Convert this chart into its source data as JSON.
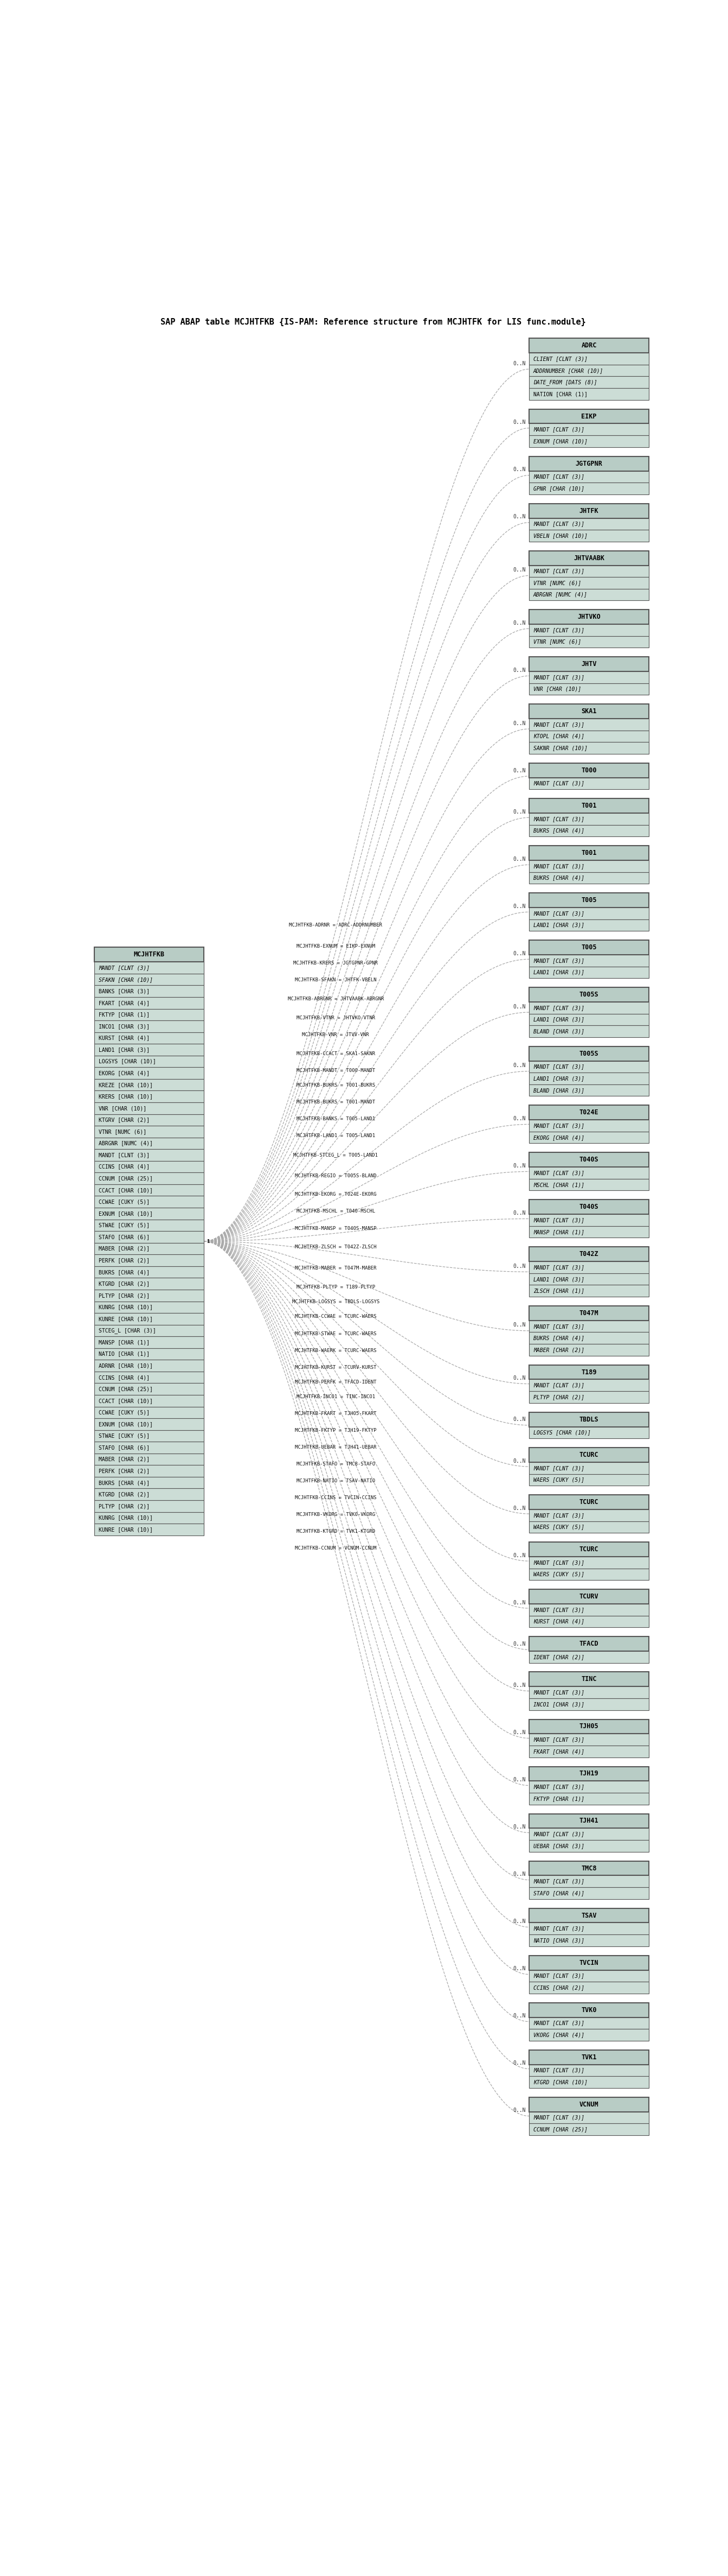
{
  "title": "SAP ABAP table MCJHTFKB {IS-PAM: Reference structure from MCJHTFK for LIS func.module}",
  "fig_w": 13.43,
  "fig_h": 47.46,
  "bg_color": "#ffffff",
  "header_bg": "#b8ccc5",
  "row_bg": "#ccddd6",
  "border_color": "#555555",
  "center_table": {
    "name": "MCJHTFKB",
    "fields": [
      "MANDT [CLNT (3)]",
      "SFAKN [CHAR (10)]",
      "BANKS [CHAR (3)]",
      "FKART [CHAR (4)]",
      "FKTYP [CHAR (1)]",
      "INCO1 [CHAR (3)]",
      "KURST [CHAR (4)]",
      "LAND1 [CHAR (3)]",
      "LOGSYS [CHAR (10)]",
      "EKORG [CHAR (4)]",
      "KREZE [CHAR (10)]",
      "KRERS [CHAR (10)]",
      "VNR [CHAR (10)]",
      "KTGRV [CHAR (2)]",
      "VTNR [NUMC (6)]",
      "ABRGNR [NUMC (4)]",
      "MANDT [CLNT (3)]",
      "CCINS [CHAR (4)]",
      "CCNUM [CHAR (25)]",
      "CCACT [CHAR (10)]",
      "CCWAE [CUKY (5)]",
      "EXNUM [CHAR (10)]",
      "STWAE [CUKY (5)]",
      "STAFO [CHAR (6)]",
      "MABER [CHAR (2)]",
      "PERFK [CHAR (2)]",
      "BUKRS [CHAR (4)]",
      "KTGRD [CHAR (2)]",
      "PLTYP [CHAR (2)]",
      "KUNRG [CHAR (10)]",
      "KUNRE [CHAR (10)]",
      "STCEG_L [CHAR (3)]",
      "MANSP [CHAR (1)]",
      "NATIO [CHAR (1)]",
      "ADRNR [CHAR (10)]",
      "CCINS [CHAR (4)]",
      "CCNUM [CHAR (25)]",
      "CCACT [CHAR (10)]",
      "CCWAE [CUKY (5)]",
      "EXNUM [CHAR (10)]",
      "STWAE [CUKY (5)]",
      "STAFO [CHAR (6)]",
      "MABER [CHAR (2)]",
      "PERFK [CHAR (2)]",
      "BUKRS [CHAR (4)]",
      "KTGRD [CHAR (2)]",
      "PLTYP [CHAR (2)]",
      "KUNRG [CHAR (10)]",
      "KUNRE [CHAR (10)]"
    ],
    "key_count": 2
  },
  "right_tables": [
    {
      "name": "ADRC",
      "fields": [
        "CLIENT [CLNT (3)]",
        "ADDRNUMBER [CHAR (10)]",
        "DATE_FROM [DATS (8)]",
        "NATION [CHAR (1)]"
      ],
      "key_count": 3,
      "relation": "MCJHTFKB-ADRNR = ADRC-ADDRNUMBER",
      "cardinality": "0..N",
      "row_bg": "#ccddd6",
      "header_bg": "#b8ccc5"
    },
    {
      "name": "EIKP",
      "fields": [
        "MANDT [CLNT (3)]",
        "EXNUM [CHAR (10)]"
      ],
      "key_count": 2,
      "relation": "MCJHTFKB-EXNUM = EIKP-EXNUM",
      "cardinality": "0..N",
      "row_bg": "#ccddd6",
      "header_bg": "#b8ccc5"
    },
    {
      "name": "JGTGPNR",
      "fields": [
        "MANDT [CLNT (3)]",
        "GPNR [CHAR (10)]"
      ],
      "key_count": 2,
      "relation": "MCJHTFKB-KRERS = JGTGPNR-GPNR",
      "cardinality": "0..N",
      "row_bg": "#ccddd6",
      "header_bg": "#b8ccc5"
    },
    {
      "name": "JHTFK",
      "fields": [
        "MANDT [CLNT (3)]",
        "VBELN [CHAR (10)]"
      ],
      "key_count": 2,
      "relation": "MCJHTFKB-SFAKN = JHTFK-VBELN",
      "cardinality": "0..N",
      "row_bg": "#ccddd6",
      "header_bg": "#b8ccc5"
    },
    {
      "name": "JHTVAABK",
      "fields": [
        "MANDT [CLNT (3)]",
        "VTNR [NUMC (6)]",
        "ABRGNR [NUMC (4)]"
      ],
      "key_count": 3,
      "relation": "MCJHTFKB-ABRGNR = JHTVAABK-ABRGNR",
      "cardinality": "0..N",
      "row_bg": "#ccddd6",
      "header_bg": "#b8ccc5"
    },
    {
      "name": "JHTVKO",
      "fields": [
        "MANDT [CLNT (3)]",
        "VTNR [NUMC (6)]"
      ],
      "key_count": 2,
      "relation": "MCJHTFKB-VTNR = JHTVKO-VTNR",
      "cardinality": "0..N",
      "row_bg": "#ccddd6",
      "header_bg": "#b8ccc5"
    },
    {
      "name": "JHTV",
      "fields": [
        "MANDT [CLNT (3)]",
        "VNR [CHAR (10)]"
      ],
      "key_count": 2,
      "relation": "MCJHTFKB-VNR = JTVV-VNR",
      "cardinality": "0..N",
      "row_bg": "#ccddd6",
      "header_bg": "#b8ccc5"
    },
    {
      "name": "SKA1",
      "fields": [
        "MANDT [CLNT (3)]",
        "KTOPL [CHAR (4)]",
        "SAKNR [CHAR (10)]"
      ],
      "key_count": 3,
      "relation": "MCJHTFKB-CCACT = SKA1-SAKNR",
      "cardinality": "0..N",
      "row_bg": "#ccddd6",
      "header_bg": "#b8ccc5"
    },
    {
      "name": "T000",
      "fields": [
        "MANDT [CLNT (3)]"
      ],
      "key_count": 1,
      "relation": "MCJHTFKB-MANDT = T000-MANDT",
      "cardinality": "0..N",
      "row_bg": "#ccddd6",
      "header_bg": "#b8ccc5"
    },
    {
      "name": "T001",
      "fields": [
        "MANDT [CLNT (3)]",
        "BUKRS [CHAR (4)]"
      ],
      "key_count": 2,
      "relation": "MCJHTFKB-BUKRS = T001-BUKRS",
      "cardinality": "0..N",
      "row_bg": "#ccddd6",
      "header_bg": "#b8ccc5"
    },
    {
      "name": "T001",
      "fields": [
        "MANDT [CLNT (3)]",
        "BUKRS [CHAR (4)]"
      ],
      "key_count": 2,
      "relation": "MCJHTFKB-BUKRS = T001-MANDT",
      "cardinality": "0..N",
      "row_bg": "#ccddd6",
      "header_bg": "#b8ccc5"
    },
    {
      "name": "T005",
      "fields": [
        "MANDT [CLNT (3)]",
        "LAND1 [CHAR (3)]"
      ],
      "key_count": 2,
      "relation": "MCJHTFKB-BANKS = T005-LAND1",
      "cardinality": "0..N",
      "row_bg": "#ccddd6",
      "header_bg": "#b8ccc5"
    },
    {
      "name": "T005",
      "fields": [
        "MANDT [CLNT (3)]",
        "LAND1 [CHAR (3)]"
      ],
      "key_count": 2,
      "relation": "MCJHTFKB-LAND1 = T005-LAND1",
      "cardinality": "0..N",
      "row_bg": "#ccddd6",
      "header_bg": "#b8ccc5"
    },
    {
      "name": "T005S",
      "fields": [
        "MANDT [CLNT (3)]",
        "LAND1 [CHAR (3)]",
        "BLAND [CHAR (3)]"
      ],
      "key_count": 3,
      "relation": "MCJHTFKB-STCEG_L = T005-LAND1",
      "cardinality": "0..N",
      "row_bg": "#ccddd6",
      "header_bg": "#b8ccc5"
    },
    {
      "name": "T005S",
      "fields": [
        "MANDT [CLNT (3)]",
        "LAND1 [CHAR (3)]",
        "BLAND [CHAR (3)]"
      ],
      "key_count": 3,
      "relation": "MCJHTFKB-REGIO = T005S-BLAND",
      "cardinality": "0..N",
      "row_bg": "#ccddd6",
      "header_bg": "#b8ccc5"
    },
    {
      "name": "T024E",
      "fields": [
        "MANDT [CLNT (3)]",
        "EKORG [CHAR (4)]"
      ],
      "key_count": 2,
      "relation": "MCJHTFKB-EKORG = T024E-EKORG",
      "cardinality": "0..N",
      "row_bg": "#ccddd6",
      "header_bg": "#b8ccc5"
    },
    {
      "name": "T040S",
      "fields": [
        "MANDT [CLNT (3)]",
        "MSCHL [CHAR (1)]"
      ],
      "key_count": 2,
      "relation": "MCJHTFKB-MSCHL = T040-MSCHL",
      "cardinality": "0..N",
      "row_bg": "#ccddd6",
      "header_bg": "#b8ccc5"
    },
    {
      "name": "T040S",
      "fields": [
        "MANDT [CLNT (3)]",
        "MANSP [CHAR (1)]"
      ],
      "key_count": 2,
      "relation": "MCJHTFKB-MANSP = T040S-MANSP",
      "cardinality": "0..N",
      "row_bg": "#ccddd6",
      "header_bg": "#b8ccc5"
    },
    {
      "name": "T042Z",
      "fields": [
        "MANDT [CLNT (3)]",
        "LAND1 [CHAR (3)]",
        "ZLSCH [CHAR (1)]"
      ],
      "key_count": 3,
      "relation": "MCJHTFKB-ZLSCH = T042Z-ZLSCH",
      "cardinality": "0..N",
      "row_bg": "#ccddd6",
      "header_bg": "#b8ccc5"
    },
    {
      "name": "T047M",
      "fields": [
        "MANDT [CLNT (3)]",
        "BUKRS [CHAR (4)]",
        "MABER [CHAR (2)]"
      ],
      "key_count": 3,
      "relation": "MCJHTFKB-MABER = T047M-MABER",
      "cardinality": "0..N",
      "row_bg": "#ccddd6",
      "header_bg": "#b8ccc5"
    },
    {
      "name": "T189",
      "fields": [
        "MANDT [CLNT (3)]",
        "PLTYP [CHAR (2)]"
      ],
      "key_count": 2,
      "relation": "MCJHTFKB-PLTYP = T189-PLTYP",
      "cardinality": "0..N",
      "row_bg": "#ccddd6",
      "header_bg": "#b8ccc5"
    },
    {
      "name": "TBDLS",
      "fields": [
        "LOGSYS [CHAR (10)]"
      ],
      "key_count": 1,
      "relation": "MCJHTFKB-LOGSYS = TBDLS-LOGSYS",
      "cardinality": "0..N",
      "row_bg": "#ccddd6",
      "header_bg": "#b8ccc5"
    },
    {
      "name": "TCURC",
      "fields": [
        "MANDT [CLNT (3)]",
        "WAERS [CUKY (5)]"
      ],
      "key_count": 2,
      "relation": "MCJHTFKB-CCWAE = TCURC-WAERS",
      "cardinality": "0..N",
      "row_bg": "#ccddd6",
      "header_bg": "#b8ccc5"
    },
    {
      "name": "TCURC",
      "fields": [
        "MANDT [CLNT (3)]",
        "WAERS [CUKY (5)]"
      ],
      "key_count": 2,
      "relation": "MCJHTFKB-STWAE = TCURC-WAERS",
      "cardinality": "0..N",
      "row_bg": "#ccddd6",
      "header_bg": "#b8ccc5"
    },
    {
      "name": "TCURC",
      "fields": [
        "MANDT [CLNT (3)]",
        "WAERS [CUKY (5)]"
      ],
      "key_count": 2,
      "relation": "MCJHTFKB-WAERK = TCURC-WAERS",
      "cardinality": "0..N",
      "row_bg": "#ccddd6",
      "header_bg": "#b8ccc5"
    },
    {
      "name": "TCURV",
      "fields": [
        "MANDT [CLNT (3)]",
        "KURST [CHAR (4)]"
      ],
      "key_count": 2,
      "relation": "MCJHTFKB-KURST = TCURV-KURST",
      "cardinality": "0..N",
      "row_bg": "#ccddd6",
      "header_bg": "#b8ccc5"
    },
    {
      "name": "TFACD",
      "fields": [
        "IDENT [CHAR (2)]"
      ],
      "key_count": 1,
      "relation": "MCJHTFKB-PERFK = TFACD-IDENT",
      "cardinality": "0..N",
      "row_bg": "#ccddd6",
      "header_bg": "#b8ccc5"
    },
    {
      "name": "TINC",
      "fields": [
        "MANDT [CLNT (3)]",
        "INCO1 [CHAR (3)]"
      ],
      "key_count": 2,
      "relation": "MCJHTFKB-INCO1 = TINC-INCO1",
      "cardinality": "0..N",
      "row_bg": "#ccddd6",
      "header_bg": "#b8ccc5"
    },
    {
      "name": "TJH05",
      "fields": [
        "MANDT [CLNT (3)]",
        "FKART [CHAR (4)]"
      ],
      "key_count": 2,
      "relation": "MCJHTFKB-FKART = TJH05-FKART",
      "cardinality": "0..N",
      "row_bg": "#ccddd6",
      "header_bg": "#b8ccc5"
    },
    {
      "name": "TJH19",
      "fields": [
        "MANDT [CLNT (3)]",
        "FKTYP [CHAR (1)]"
      ],
      "key_count": 2,
      "relation": "MCJHTFKB-FKTYP = TJH19-FKTYP",
      "cardinality": "0..N",
      "row_bg": "#ccddd6",
      "header_bg": "#b8ccc5"
    },
    {
      "name": "TJH41",
      "fields": [
        "MANDT [CLNT (3)]",
        "UEBAR [CHAR (3)]"
      ],
      "key_count": 2,
      "relation": "MCJHTFKB-UEBAR = TJH41-UEBAR",
      "cardinality": "0..N",
      "row_bg": "#ccddd6",
      "header_bg": "#b8ccc5"
    },
    {
      "name": "TMC8",
      "fields": [
        "MANDT [CLNT (3)]",
        "STAFO [CHAR (4)]"
      ],
      "key_count": 2,
      "relation": "MCJHTFKB-STAFO = TMC8-STAFO",
      "cardinality": "0..N",
      "row_bg": "#ccddd6",
      "header_bg": "#b8ccc5"
    },
    {
      "name": "TSAV",
      "fields": [
        "MANDT [CLNT (3)]",
        "NATIO [CHAR (3)]"
      ],
      "key_count": 2,
      "relation": "MCJHTFKB-NATIO = TSAV-NATIO",
      "cardinality": "0..N",
      "row_bg": "#ccddd6",
      "header_bg": "#b8ccc5"
    },
    {
      "name": "TVCIN",
      "fields": [
        "MANDT [CLNT (3)]",
        "CCINS [CHAR (2)]"
      ],
      "key_count": 2,
      "relation": "MCJHTFKB-CCINS = TVCIN-CCINS",
      "cardinality": "0..N",
      "row_bg": "#ccddd6",
      "header_bg": "#b8ccc5"
    },
    {
      "name": "TVK0",
      "fields": [
        "MANDT [CLNT (3)]",
        "VKORG [CHAR (4)]"
      ],
      "key_count": 2,
      "relation": "MCJHTFKB-VKORG = TVK0-VKORG",
      "cardinality": "0..N",
      "row_bg": "#ccddd6",
      "header_bg": "#b8ccc5"
    },
    {
      "name": "TVK1",
      "fields": [
        "MANDT [CLNT (3)]",
        "KTGRD [CHAR (10)]"
      ],
      "key_count": 2,
      "relation": "MCJHTFKB-KTGRD = TVK1-KTGRD",
      "cardinality": "0..N",
      "row_bg": "#ccddd6",
      "header_bg": "#b8ccc5"
    },
    {
      "name": "VCNUM",
      "fields": [
        "MANDT [CLNT (3)]",
        "CCNUM [CHAR (25)]"
      ],
      "key_count": 2,
      "relation": "MCJHTFKB-CCNUM = VCNUM-CCNUM",
      "cardinality": "0..N",
      "row_bg": "#ccddd6",
      "header_bg": "#b8ccc5"
    }
  ]
}
